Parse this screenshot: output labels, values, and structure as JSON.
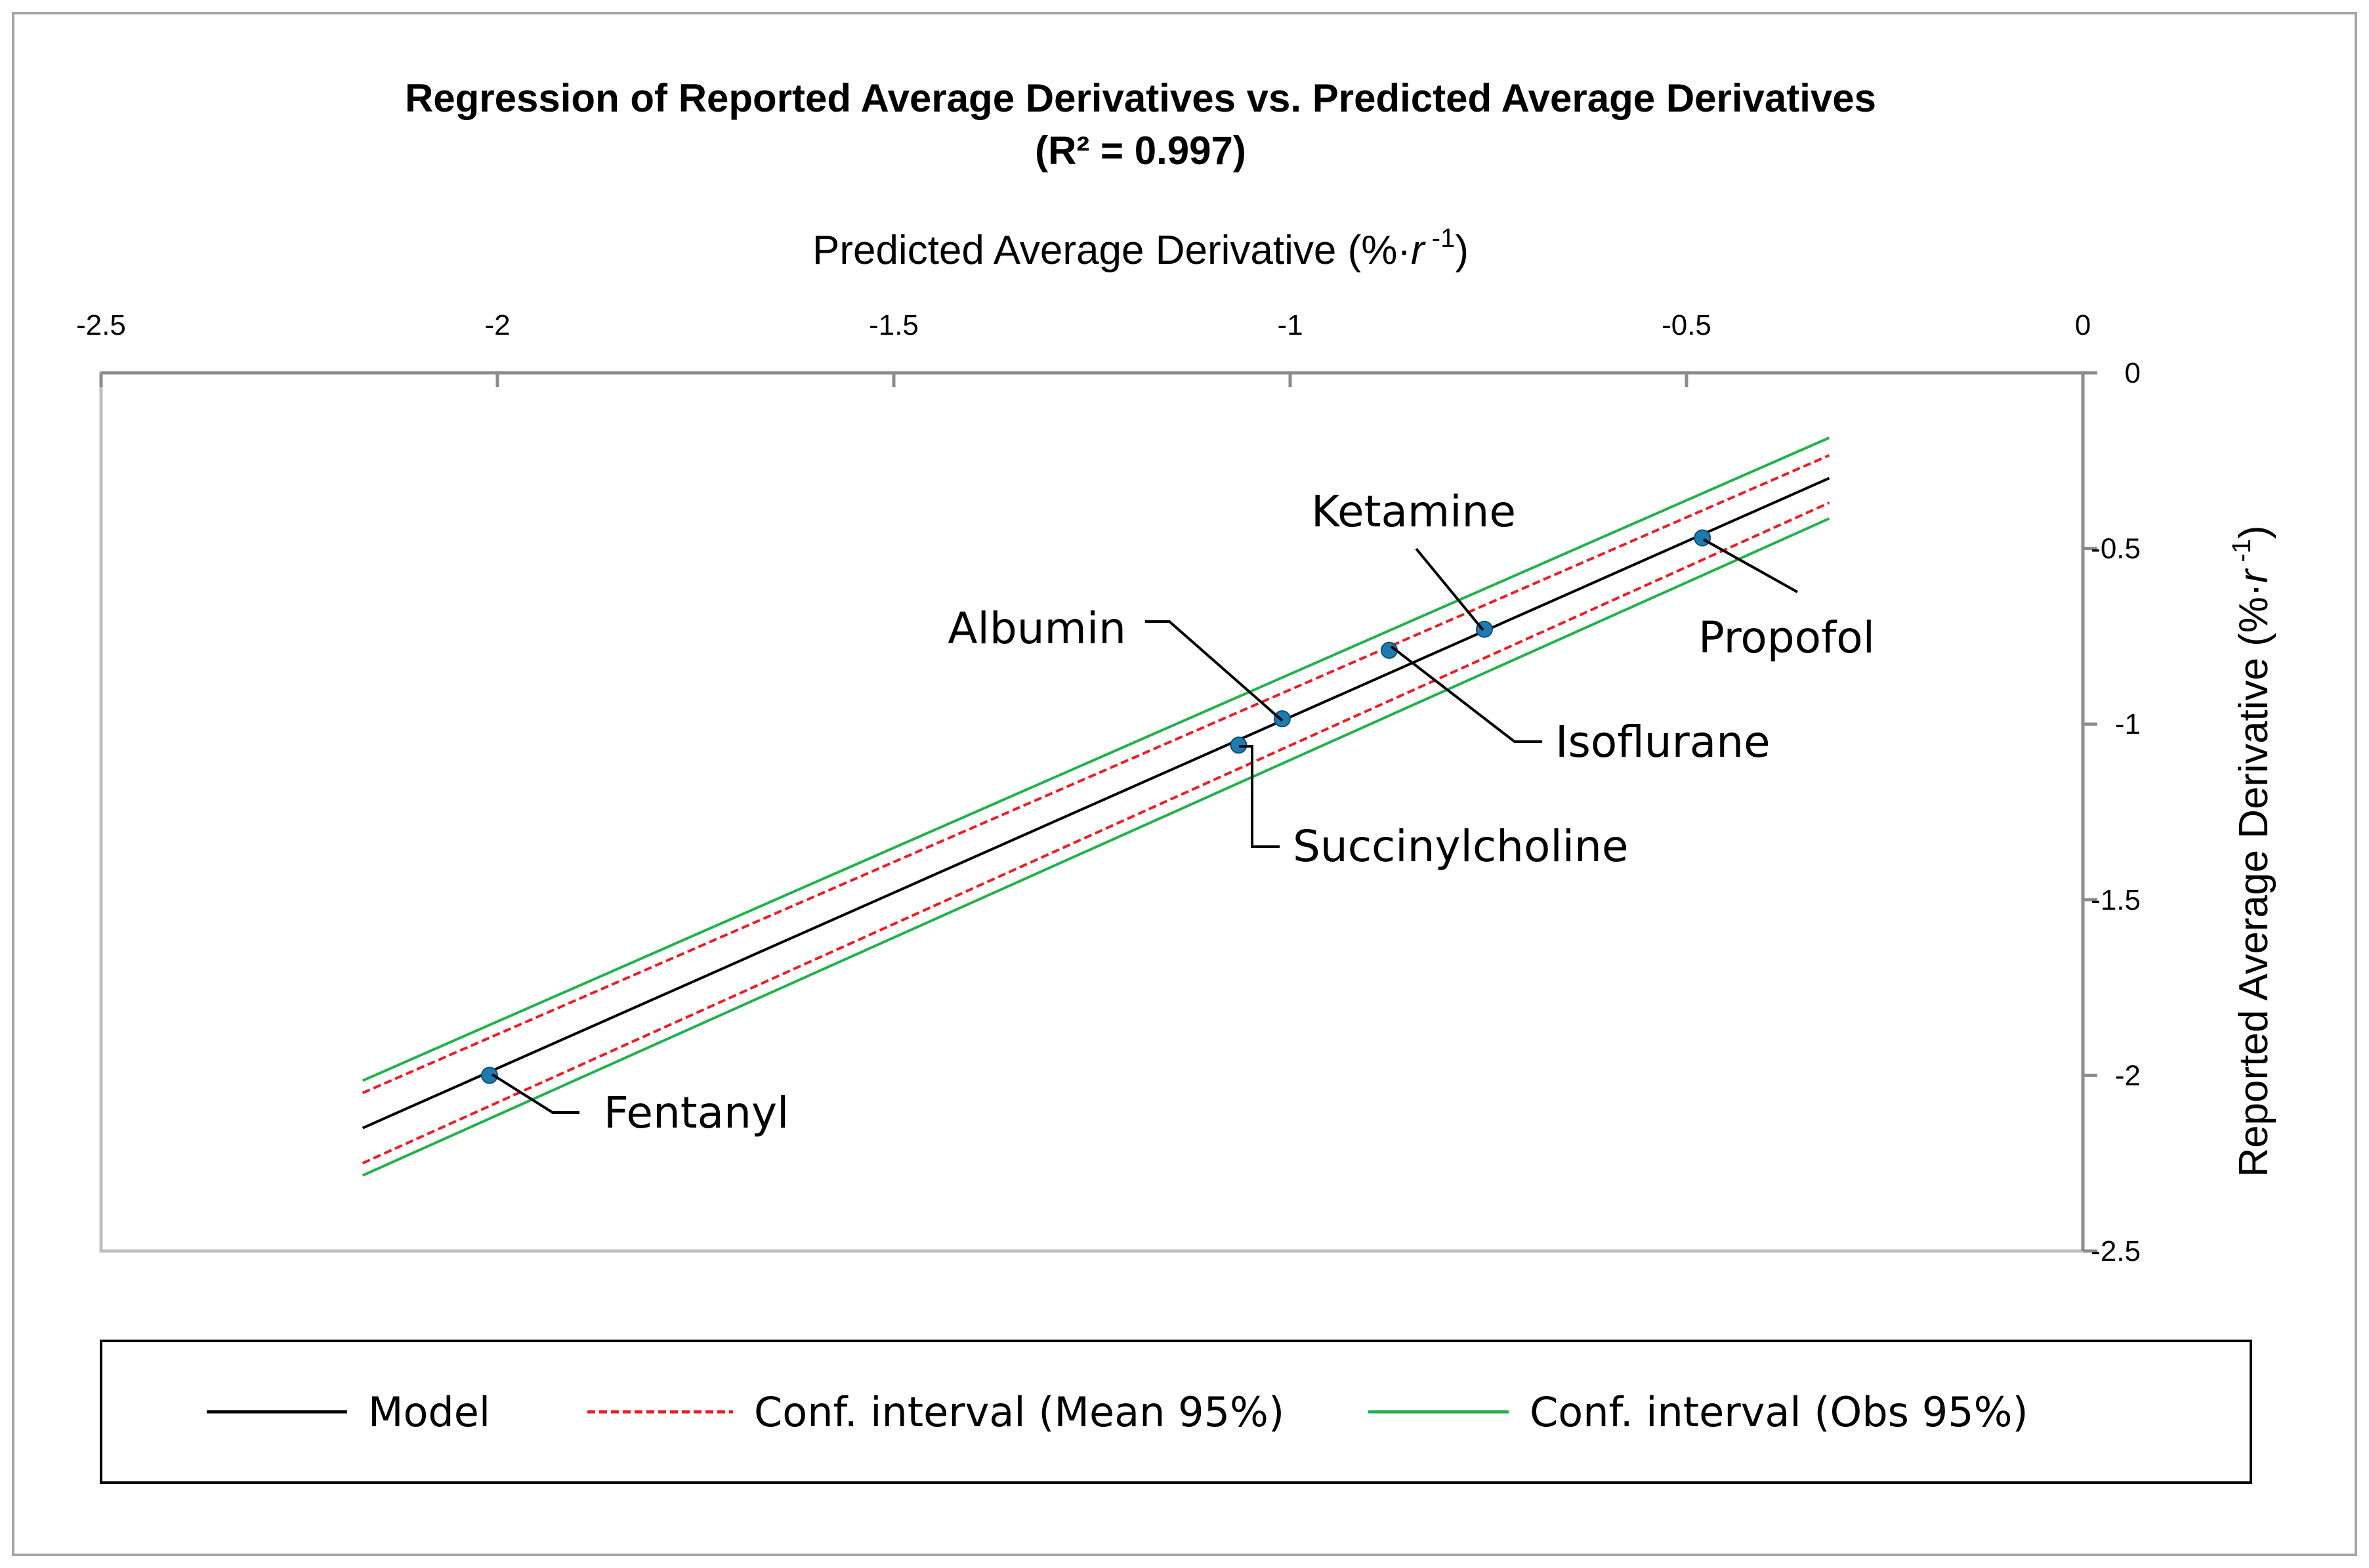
{
  "chart_data": {
    "type": "scatter",
    "title": "Regression of Reported Average Derivatives vs. Predicted Average Derivatives",
    "subtitle": "(R² = 0.997)",
    "xlabel_main": "Predicted Average Derivative (%·",
    "xlabel_var": "r",
    "xlabel_sup": " -1",
    "xlabel_end": ")",
    "ylabel_main": "Reported Average Derivative (%·",
    "ylabel_var": "r",
    "ylabel_sup": " -1",
    "ylabel_end": ")",
    "xlim": [
      -2.5,
      0
    ],
    "ylim": [
      -2.5,
      0
    ],
    "xticks": [
      {
        "v": -2.5,
        "label": "-2.5"
      },
      {
        "v": -2,
        "label": "-2"
      },
      {
        "v": -1.5,
        "label": "-1.5"
      },
      {
        "v": -1,
        "label": "-1"
      },
      {
        "v": -0.5,
        "label": "-0.5"
      },
      {
        "v": 0,
        "label": "0"
      }
    ],
    "yticks": [
      {
        "v": 0,
        "label": "0"
      },
      {
        "v": -0.5,
        "label": "-0.5"
      },
      {
        "v": -1,
        "label": "-1"
      },
      {
        "v": -1.5,
        "label": "-1.5"
      },
      {
        "v": -2,
        "label": "-2"
      },
      {
        "v": -2.5,
        "label": "-2.5"
      }
    ],
    "points": [
      {
        "name": "Fentanyl",
        "x": -2.01,
        "y": -2.0
      },
      {
        "name": "Succinylcholine",
        "x": -1.065,
        "y": -1.06
      },
      {
        "name": "Albumin",
        "x": -1.01,
        "y": -0.985
      },
      {
        "name": "Isoflurane",
        "x": -0.875,
        "y": -0.79
      },
      {
        "name": "Ketamine",
        "x": -0.755,
        "y": -0.73
      },
      {
        "name": "Propofol",
        "x": -0.48,
        "y": -0.47
      }
    ],
    "series": [
      {
        "name": "Model",
        "color": "#000000",
        "dash": "none",
        "x": [
          -2.17,
          -0.32
        ],
        "y": [
          -2.15,
          -0.3
        ]
      },
      {
        "name": "Conf. interval (Mean 95%)",
        "color": "#ee1c24",
        "dash": "dashed",
        "x": [
          -2.17,
          -0.32
        ],
        "y": [
          -2.05,
          -0.235
        ]
      },
      {
        "name": "Conf. interval (Mean 95%)",
        "color": "#ee1c24",
        "dash": "dashed",
        "x": [
          -2.17,
          -0.32
        ],
        "y": [
          -2.25,
          -0.37
        ]
      },
      {
        "name": "Conf. interval (Obs 95%)",
        "color": "#22b14c",
        "dash": "none",
        "x": [
          -2.17,
          -0.32
        ],
        "y": [
          -2.015,
          -0.185
        ]
      },
      {
        "name": "Conf. interval (Obs 95%)",
        "color": "#22b14c",
        "dash": "none",
        "x": [
          -2.17,
          -0.32
        ],
        "y": [
          -2.285,
          -0.415
        ]
      }
    ],
    "legend": [
      {
        "label": "Model",
        "color": "#000000",
        "dash": "none"
      },
      {
        "label": "Conf. interval (Mean 95%)",
        "color": "#ee1c24",
        "dash": "dashed"
      },
      {
        "label": "Conf. interval (Obs 95%)",
        "color": "#22b14c",
        "dash": "none"
      }
    ],
    "point_color": "#1f7ab0"
  }
}
